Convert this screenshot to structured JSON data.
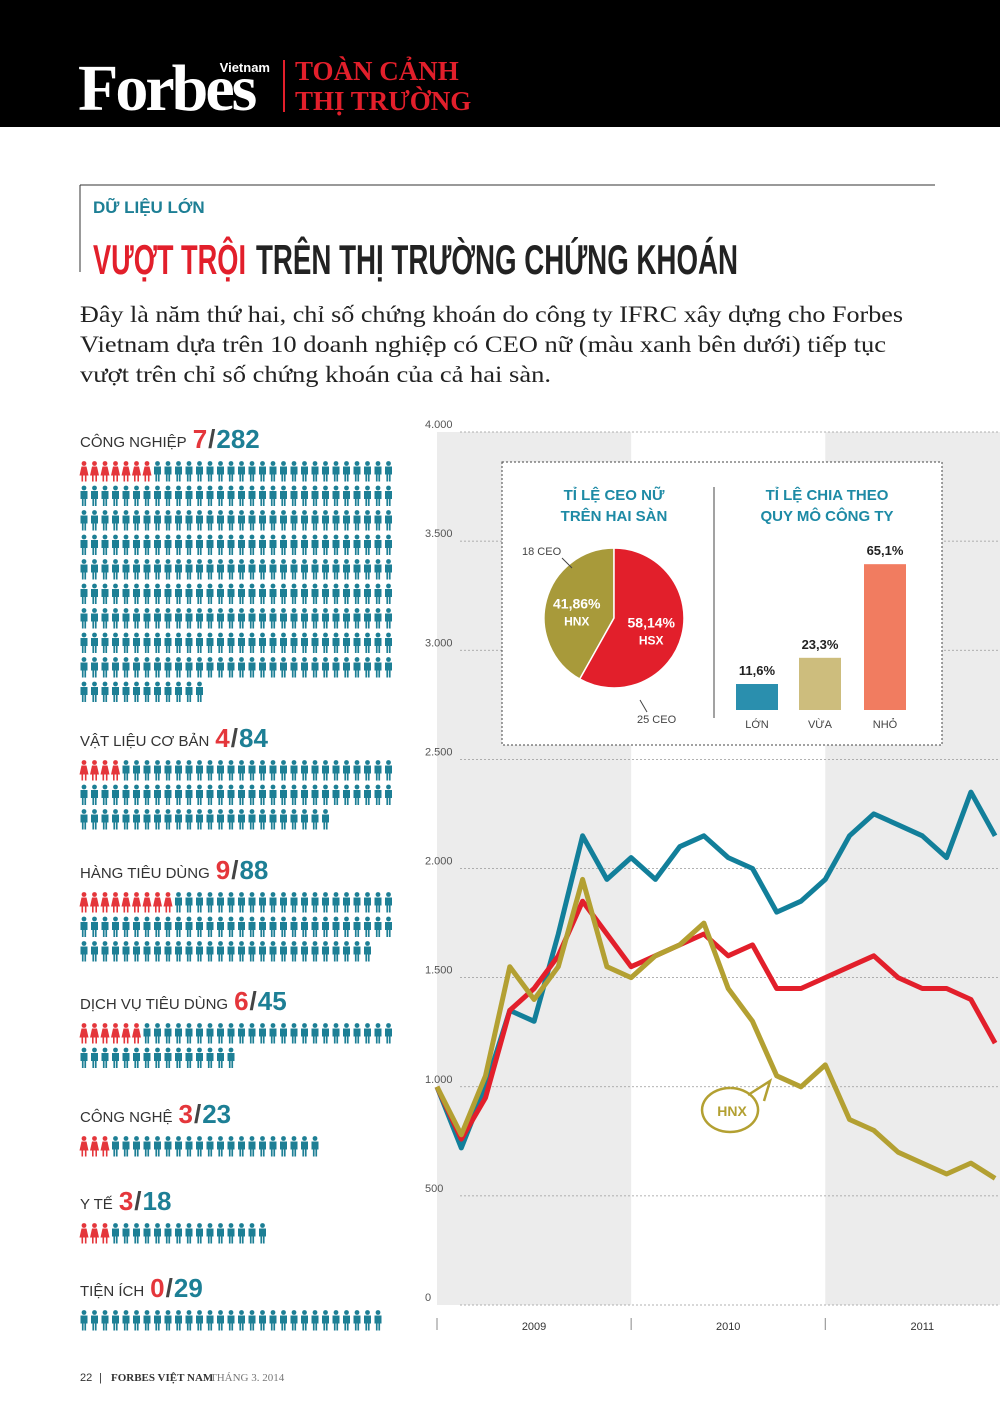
{
  "header": {
    "brand": "Forbes",
    "edition": "Vietnam",
    "section": [
      "TOÀN CẢNH",
      "THỊ TRƯỜNG"
    ]
  },
  "kicker": "DỮ LIỆU LỚN",
  "title": {
    "highlight": "VƯỢT TRỘI",
    "rest": "TRÊN THỊ TRƯỜNG CHỨNG KHOÁN"
  },
  "intro": [
    "Đây là năm thứ hai, chỉ số chứng khoán do công ty IFRC xây dựng cho Forbes",
    "Vietnam dựa trên 10 doanh nghiệp có CEO nữ (màu xanh bên dưới) tiếp tục",
    "vượt trên chỉ số chứng khoán của cả hai sàn."
  ],
  "sectors": {
    "separator": "/",
    "women_color": "#e4363b",
    "total_color": "#1d7f95",
    "items": [
      {
        "name": "CÔNG NGHIỆP",
        "women": 7,
        "total": 282
      },
      {
        "name": "VẬT LIỆU CƠ BẢN",
        "women": 4,
        "total": 84
      },
      {
        "name": "HÀNG TIÊU DÙNG",
        "women": 9,
        "total": 88
      },
      {
        "name": "DỊCH VỤ TIÊU DÙNG",
        "women": 6,
        "total": 45
      },
      {
        "name": "CÔNG NGHỆ",
        "women": 3,
        "total": 23
      },
      {
        "name": "Y TẾ",
        "women": 3,
        "total": 18
      },
      {
        "name": "TIỆN ÍCH",
        "women": 0,
        "total": 29
      }
    ]
  },
  "line_chart": {
    "type": "line",
    "x": [
      2009,
      2009.125,
      2009.25,
      2009.375,
      2009.5,
      2009.625,
      2009.75,
      2009.875,
      2010,
      2010.125,
      2010.25,
      2010.375,
      2010.5,
      2010.625,
      2010.75,
      2010.875,
      2011,
      2011.125,
      2011.25,
      2011.375,
      2011.5,
      2011.625,
      2011.75,
      2011.875
    ],
    "series": [
      {
        "color": "#127f9a",
        "values": [
          1000,
          720,
          1000,
          1350,
          1300,
          1700,
          2150,
          1950,
          2050,
          1950,
          2100,
          2150,
          2050,
          2000,
          1800,
          1850,
          1950,
          2150,
          2250,
          2200,
          2150,
          2050,
          2350,
          2150
        ]
      },
      {
        "color": "#e21f2b",
        "values": [
          1000,
          760,
          950,
          1350,
          1450,
          1600,
          1850,
          1700,
          1550,
          1600,
          1650,
          1700,
          1600,
          1650,
          1450,
          1450,
          1500,
          1550,
          1600,
          1500,
          1450,
          1450,
          1400,
          1200
        ]
      },
      {
        "color": "#b3a032",
        "values": [
          1000,
          780,
          1050,
          1550,
          1400,
          1550,
          1950,
          1550,
          1500,
          1600,
          1650,
          1750,
          1450,
          1300,
          1050,
          1000,
          1100,
          850,
          800,
          700,
          650,
          600,
          650,
          580
        ]
      }
    ],
    "annotation": "HNX",
    "xlim": [
      2009,
      2011.9
    ],
    "xticks": [
      2009,
      2010,
      2011
    ],
    "ylim": [
      0,
      4000
    ],
    "yticks": [
      0,
      500,
      {
        "value": 1000,
        "label": "1.000"
      },
      {
        "value": 1500,
        "label": "1.500"
      },
      {
        "value": 2000,
        "label": "2.000"
      },
      {
        "value": 2500,
        "label": "2.500"
      },
      {
        "value": 3000,
        "label": "3.000"
      },
      {
        "value": 3500,
        "label": "3.500"
      },
      {
        "value": 4000,
        "label": "4.000"
      }
    ],
    "grid": true
  },
  "pie_chart": {
    "type": "pie",
    "title": [
      "TỈ LỆ CEO NỮ",
      "TRÊN HAI SÀN"
    ],
    "categories": [
      "HNX",
      "HSX"
    ],
    "values": [
      41.86,
      58.14
    ],
    "value_labels": [
      "41,86%",
      "58,14%"
    ],
    "colors": [
      "#a89a3a",
      "#e21f2b"
    ],
    "annotations": [
      "18 CEO",
      "25 CEO"
    ]
  },
  "bar_chart": {
    "type": "bar",
    "title": [
      "TỈ LỆ CHIA THEO",
      "QUY MÔ CÔNG TY"
    ],
    "categories": [
      "LỚN",
      "VỪA",
      "NHỎ"
    ],
    "values": [
      11.6,
      23.3,
      65.1
    ],
    "value_labels": [
      "11,6%",
      "23,3%",
      "65,1%"
    ],
    "colors": [
      "#2a8fae",
      "#cdbd7d",
      "#f17c60"
    ]
  },
  "footer": {
    "page": "22",
    "separator": "|",
    "magazine": "FORBES VIỆT NAM",
    "issue": "THÁNG 3. 2014"
  }
}
